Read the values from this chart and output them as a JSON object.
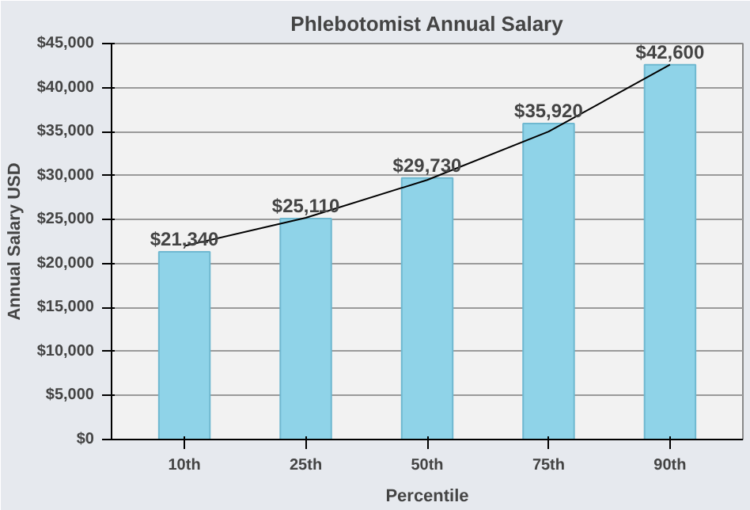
{
  "chart_data": {
    "type": "bar",
    "title": "Phlebotomist Annual Salary",
    "xlabel": "Percentile",
    "ylabel": "Annual Salary USD",
    "categories": [
      "10th",
      "25th",
      "50th",
      "75th",
      "90th"
    ],
    "series": [
      {
        "color": "#8fd3e8",
        "values": [
          21340,
          25110,
          29730,
          35920,
          42600
        ],
        "value_labels": [
          "$21,340",
          "$25,110",
          "$29,730",
          "$35,920",
          "$42,600"
        ]
      },
      {
        "type": "line",
        "color": "#000000",
        "values": [
          22000,
          25200,
          29500,
          35000,
          42600
        ]
      }
    ],
    "ylim": [
      0,
      45000
    ],
    "yticks": [
      {
        "value": 0,
        "label": "$0"
      },
      {
        "value": 5000,
        "label": "$5,000"
      },
      {
        "value": 10000,
        "label": "$10,000"
      },
      {
        "value": 15000,
        "label": "$15,000"
      },
      {
        "value": 20000,
        "label": "$20,000"
      },
      {
        "value": 25000,
        "label": "$25,000"
      },
      {
        "value": 30000,
        "label": "$30,000"
      },
      {
        "value": 35000,
        "label": "$35,000"
      },
      {
        "value": 40000,
        "label": "$40,000"
      },
      {
        "value": 45000,
        "label": "$45,000"
      }
    ],
    "grid": "y",
    "marker": "none",
    "line_style": "solid"
  }
}
